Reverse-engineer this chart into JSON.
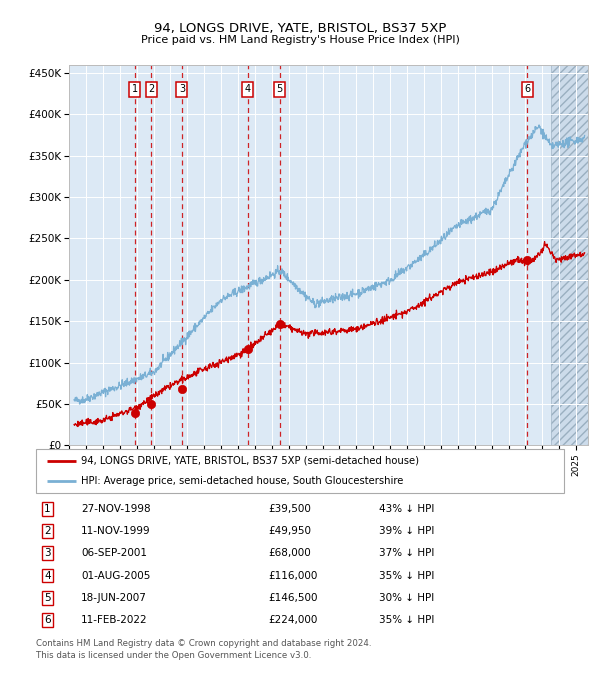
{
  "title1": "94, LONGS DRIVE, YATE, BRISTOL, BS37 5XP",
  "title2": "Price paid vs. HM Land Registry's House Price Index (HPI)",
  "ylabel_ticks": [
    "£0",
    "£50K",
    "£100K",
    "£150K",
    "£200K",
    "£250K",
    "£300K",
    "£350K",
    "£400K",
    "£450K"
  ],
  "ytick_values": [
    0,
    50000,
    100000,
    150000,
    200000,
    250000,
    300000,
    350000,
    400000,
    450000
  ],
  "ylim": [
    0,
    460000
  ],
  "xlim_start": 1995.3,
  "xlim_end": 2025.7,
  "transactions": [
    {
      "id": 1,
      "date_str": "27-NOV-1998",
      "date_num": 1998.9,
      "price": 39500,
      "pct": "43% ↓ HPI"
    },
    {
      "id": 2,
      "date_str": "11-NOV-1999",
      "date_num": 1999.86,
      "price": 49950,
      "pct": "39% ↓ HPI"
    },
    {
      "id": 3,
      "date_str": "06-SEP-2001",
      "date_num": 2001.68,
      "price": 68000,
      "pct": "37% ↓ HPI"
    },
    {
      "id": 4,
      "date_str": "01-AUG-2005",
      "date_num": 2005.58,
      "price": 116000,
      "pct": "35% ↓ HPI"
    },
    {
      "id": 5,
      "date_str": "18-JUN-2007",
      "date_num": 2007.46,
      "price": 146500,
      "pct": "30% ↓ HPI"
    },
    {
      "id": 6,
      "date_str": "11-FEB-2022",
      "date_num": 2022.12,
      "price": 224000,
      "pct": "35% ↓ HPI"
    }
  ],
  "red_line_color": "#cc0000",
  "blue_line_color": "#7ab0d4",
  "bg_color": "#dce9f5",
  "grid_color": "#ffffff",
  "dashed_line_color": "#cc0000",
  "legend1": "94, LONGS DRIVE, YATE, BRISTOL, BS37 5XP (semi-detached house)",
  "legend2": "HPI: Average price, semi-detached house, South Gloucestershire",
  "footer1": "Contains HM Land Registry data © Crown copyright and database right 2024.",
  "footer2": "This data is licensed under the Open Government Licence v3.0.",
  "table_rows": [
    [
      1,
      "27-NOV-1998",
      "£39,500",
      "43% ↓ HPI"
    ],
    [
      2,
      "11-NOV-1999",
      "£49,950",
      "39% ↓ HPI"
    ],
    [
      3,
      "06-SEP-2001",
      "£68,000",
      "37% ↓ HPI"
    ],
    [
      4,
      "01-AUG-2005",
      "£116,000",
      "35% ↓ HPI"
    ],
    [
      5,
      "18-JUN-2007",
      "£146,500",
      "30% ↓ HPI"
    ],
    [
      6,
      "11-FEB-2022",
      "£224,000",
      "35% ↓ HPI"
    ]
  ],
  "hatch_start": 2023.5,
  "hatch_end": 2025.7
}
